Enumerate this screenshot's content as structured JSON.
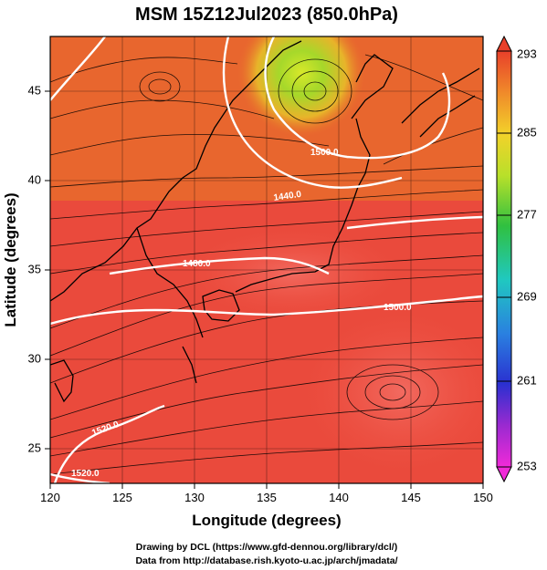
{
  "title": "MSM 15Z12Jul2023 (850.0hPa)",
  "x_axis": {
    "label": "Longitude (degrees)",
    "ticks": [
      "120",
      "125",
      "130",
      "135",
      "140",
      "145",
      "150"
    ]
  },
  "y_axis": {
    "label": "Latitude  (degrees)",
    "ticks": [
      "25",
      "30",
      "35",
      "40",
      "45"
    ]
  },
  "colorbar": {
    "ticks": [
      "293",
      "285",
      "277",
      "269",
      "261",
      "253"
    ],
    "min": 253,
    "max": 293
  },
  "contour_labels": [
    "1440.0",
    "1500.0",
    "1480.0",
    "1500.0",
    "1520.0",
    "1520.0"
  ],
  "footer": {
    "line1": "Drawing by DCL (https://www.gfd-dennou.org/library/dcl/)",
    "line2": "Data from http://database.rish.kyoto-u.ac.jp/arch/jmadata/"
  },
  "colors": {
    "warm": "#e8402a",
    "hot": "#f05a50",
    "cool": "#9fd42a",
    "contour": "#ffffff",
    "stream": "#000000"
  }
}
